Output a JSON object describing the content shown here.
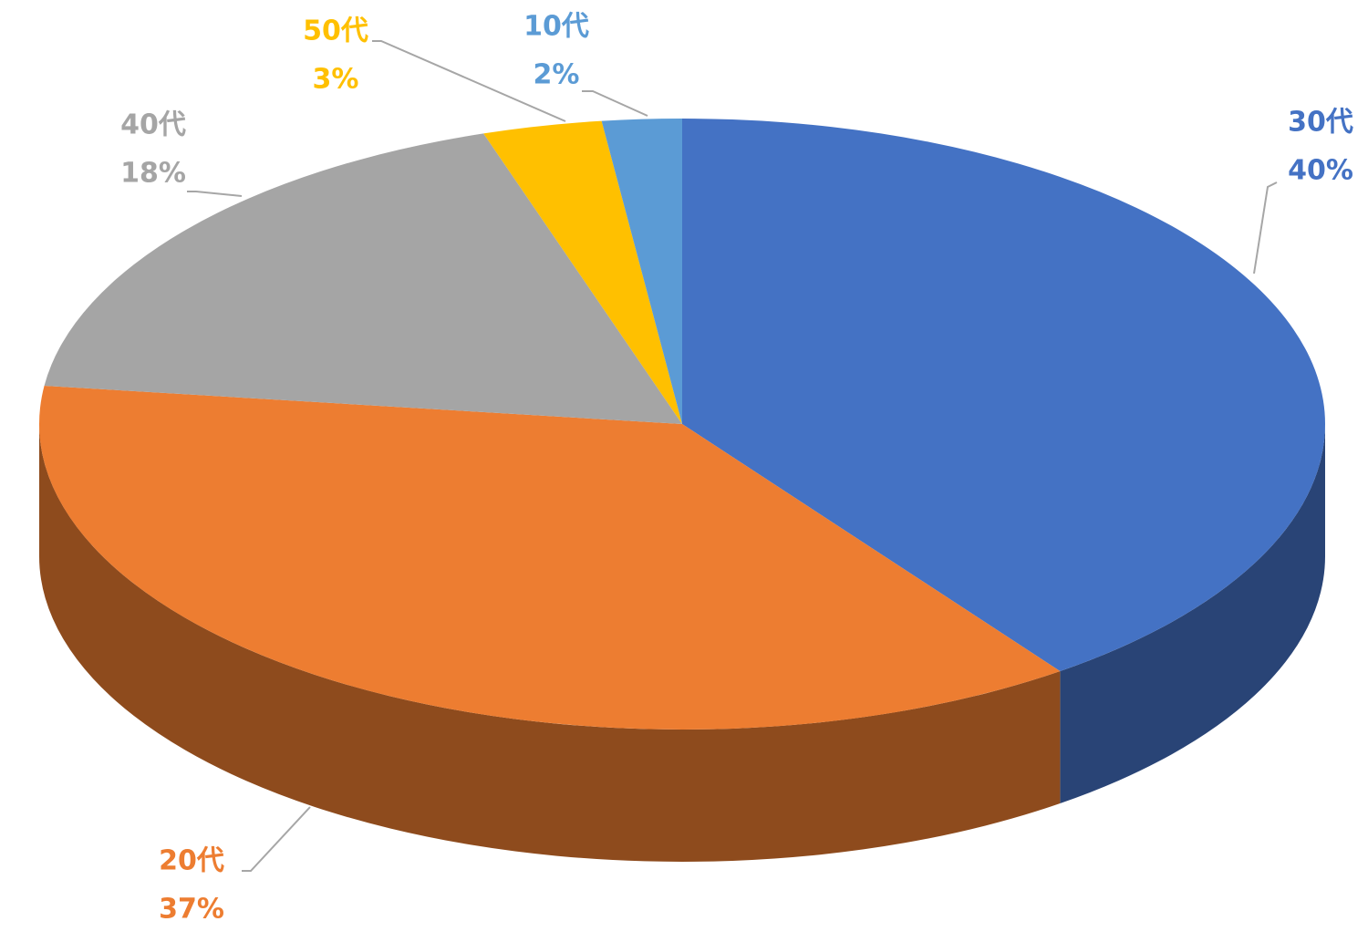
{
  "chart_data": {
    "type": "pie",
    "categories": [
      "30代",
      "20代",
      "40代",
      "50代",
      "10代"
    ],
    "values": [
      40,
      37,
      18,
      3,
      2
    ],
    "value_labels": [
      "40%",
      "37%",
      "18%",
      "3%",
      "2%"
    ],
    "colors": [
      "#4472c4",
      "#ed7d31",
      "#a5a5a5",
      "#ffc000",
      "#5b9bd5"
    ]
  }
}
